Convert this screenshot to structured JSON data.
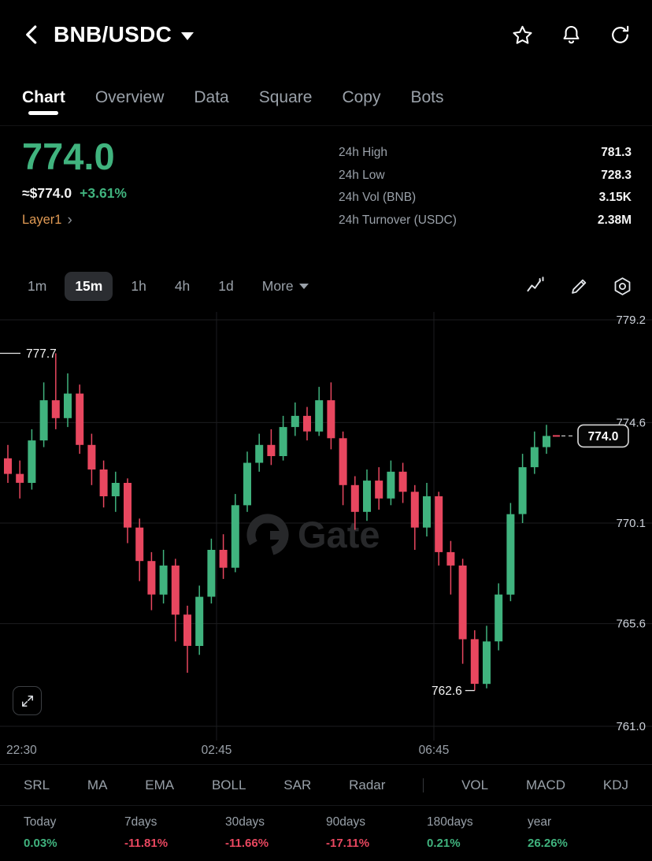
{
  "header": {
    "title": "BNB/USDC"
  },
  "tabs": [
    {
      "label": "Chart",
      "active": true
    },
    {
      "label": "Overview"
    },
    {
      "label": "Data"
    },
    {
      "label": "Square"
    },
    {
      "label": "Copy"
    },
    {
      "label": "Bots"
    }
  ],
  "price": {
    "last": "774.0",
    "fiat_approx": "≈$774.0",
    "change_24h": "+3.61%",
    "tag": "Layer1"
  },
  "stats": [
    {
      "label": "24h High",
      "value": "781.3"
    },
    {
      "label": "24h Low",
      "value": "728.3"
    },
    {
      "label": "24h Vol (BNB)",
      "value": "3.15K"
    },
    {
      "label": "24h Turnover (USDC)",
      "value": "2.38M"
    }
  ],
  "timeframes": [
    {
      "label": "1m"
    },
    {
      "label": "15m",
      "active": true
    },
    {
      "label": "1h"
    },
    {
      "label": "4h"
    },
    {
      "label": "1d"
    },
    {
      "label": "More"
    }
  ],
  "colors": {
    "up": "#40b37e",
    "down": "#e8475f",
    "orange": "#e09a54",
    "text_secondary": "#9aa1a9"
  },
  "chart_data": {
    "type": "candlestick",
    "symbol": "BNB/USDC",
    "interval": "15m",
    "ylim": [
      761.0,
      779.2
    ],
    "y_ticks": [
      779.2,
      774.6,
      770.1,
      765.6,
      761.0
    ],
    "x_ticks": [
      "22:30",
      "02:45",
      "06:45"
    ],
    "last_price": "774.0",
    "high_marker": 777.7,
    "low_marker": 762.6,
    "watermark": "Gate",
    "candles": [
      [
        773.0,
        773.6,
        771.9,
        772.3
      ],
      [
        772.3,
        772.9,
        771.2,
        771.9
      ],
      [
        771.9,
        774.3,
        771.6,
        773.8
      ],
      [
        773.8,
        776.4,
        773.5,
        775.6
      ],
      [
        775.6,
        777.7,
        774.3,
        774.8
      ],
      [
        774.8,
        776.8,
        774.4,
        775.9
      ],
      [
        775.9,
        776.3,
        773.2,
        773.6
      ],
      [
        773.6,
        774.1,
        771.8,
        772.5
      ],
      [
        772.5,
        772.9,
        770.8,
        771.3
      ],
      [
        771.3,
        772.4,
        770.6,
        771.9
      ],
      [
        771.9,
        772.1,
        769.2,
        769.9
      ],
      [
        769.9,
        770.3,
        767.5,
        768.4
      ],
      [
        768.4,
        768.8,
        766.2,
        766.9
      ],
      [
        766.9,
        768.9,
        766.5,
        768.2
      ],
      [
        768.2,
        768.5,
        764.8,
        766.0
      ],
      [
        766.0,
        766.4,
        763.4,
        764.6
      ],
      [
        764.6,
        767.3,
        764.2,
        766.8
      ],
      [
        766.8,
        769.4,
        766.5,
        768.9
      ],
      [
        768.9,
        769.6,
        767.6,
        768.1
      ],
      [
        768.1,
        771.4,
        767.9,
        770.9
      ],
      [
        770.9,
        773.3,
        770.6,
        772.8
      ],
      [
        772.8,
        774.1,
        772.4,
        773.6
      ],
      [
        773.6,
        774.3,
        772.7,
        773.1
      ],
      [
        773.1,
        774.9,
        772.9,
        774.4
      ],
      [
        774.4,
        775.5,
        774.0,
        774.9
      ],
      [
        774.9,
        775.3,
        773.8,
        774.2
      ],
      [
        774.2,
        776.2,
        774.0,
        775.6
      ],
      [
        775.6,
        776.4,
        773.4,
        773.9
      ],
      [
        773.9,
        774.2,
        770.9,
        771.8
      ],
      [
        771.8,
        772.2,
        769.8,
        770.6
      ],
      [
        770.6,
        772.5,
        770.2,
        772.0
      ],
      [
        772.0,
        772.6,
        770.7,
        771.2
      ],
      [
        771.2,
        772.9,
        770.9,
        772.4
      ],
      [
        772.4,
        772.8,
        771.0,
        771.5
      ],
      [
        771.5,
        771.8,
        768.9,
        769.9
      ],
      [
        769.9,
        771.9,
        769.5,
        771.3
      ],
      [
        771.3,
        771.5,
        768.2,
        768.8
      ],
      [
        768.8,
        769.3,
        766.9,
        768.2
      ],
      [
        768.2,
        768.5,
        763.8,
        764.9
      ],
      [
        764.9,
        765.3,
        762.6,
        762.9
      ],
      [
        762.9,
        765.5,
        762.7,
        764.8
      ],
      [
        764.8,
        767.4,
        764.4,
        766.9
      ],
      [
        766.9,
        771.0,
        766.6,
        770.5
      ],
      [
        770.5,
        773.2,
        770.1,
        772.6
      ],
      [
        772.6,
        774.2,
        772.3,
        773.5
      ],
      [
        773.5,
        774.5,
        773.2,
        774.0
      ]
    ]
  },
  "indicators": [
    "SRL",
    "MA",
    "EMA",
    "BOLL",
    "SAR",
    "Radar",
    "VOL",
    "MACD",
    "KDJ"
  ],
  "performance": [
    {
      "label": "Today",
      "value": "0.03%",
      "direction": "up"
    },
    {
      "label": "7days",
      "value": "-11.81%",
      "direction": "down"
    },
    {
      "label": "30days",
      "value": "-11.66%",
      "direction": "down"
    },
    {
      "label": "90days",
      "value": "-17.11%",
      "direction": "down"
    },
    {
      "label": "180days",
      "value": "0.21%",
      "direction": "up"
    },
    {
      "label": "year",
      "value": "26.26%",
      "direction": "up"
    }
  ]
}
